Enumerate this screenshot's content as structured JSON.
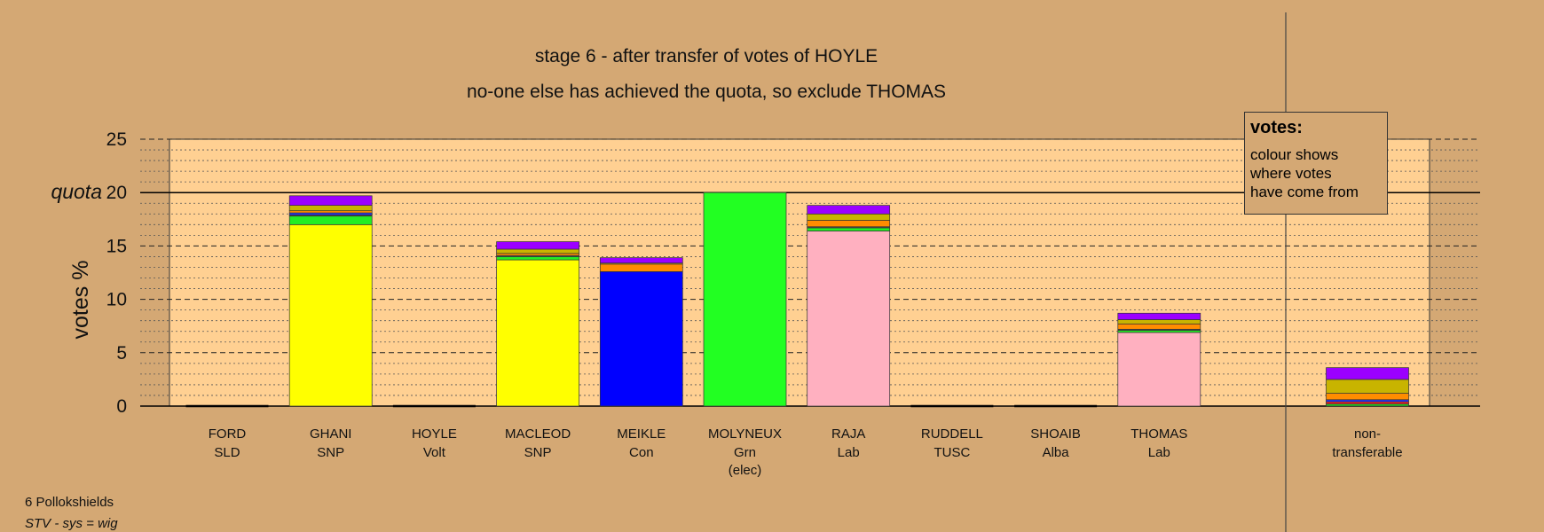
{
  "title": "stage 6 - after transfer of votes of HOYLE",
  "subtitle": "no-one else has achieved the quota, so exclude THOMAS",
  "legend": {
    "title": "votes:",
    "lines": [
      "colour shows",
      "where votes",
      "have come from"
    ]
  },
  "footer": {
    "ward": "6 Pollokshields",
    "system": "STV - sys = wig"
  },
  "chart_data": {
    "type": "bar",
    "stacked": true,
    "ylabel": "votes %",
    "ylim": [
      0,
      25
    ],
    "yticks": [
      0,
      5,
      10,
      15,
      20,
      25
    ],
    "quota": 20,
    "quota_label": "quota",
    "grid": "dashed every 5, dotted every 1",
    "legend_position": "top-right",
    "categories": [
      {
        "name": "FORD",
        "party": "SLD",
        "note": ""
      },
      {
        "name": "GHANI",
        "party": "SNP",
        "note": ""
      },
      {
        "name": "HOYLE",
        "party": "Volt",
        "note": ""
      },
      {
        "name": "MACLEOD",
        "party": "SNP",
        "note": ""
      },
      {
        "name": "MEIKLE",
        "party": "Con",
        "note": ""
      },
      {
        "name": "MOLYNEUX",
        "party": "Grn",
        "note": "(elec)"
      },
      {
        "name": "RAJA",
        "party": "Lab",
        "note": ""
      },
      {
        "name": "RUDDELL",
        "party": "TUSC",
        "note": ""
      },
      {
        "name": "SHOAIB",
        "party": "Alba",
        "note": ""
      },
      {
        "name": "THOMAS",
        "party": "Lab",
        "note": ""
      }
    ],
    "nontransferable": {
      "label_lines": [
        "non-",
        "transferable"
      ],
      "segments": [
        {
          "color": "#22cc22",
          "value": 0.2
        },
        {
          "color": "#ff2222",
          "value": 0.2
        },
        {
          "color": "#2233ff",
          "value": 0.2
        },
        {
          "color": "#ff8c00",
          "value": 0.6
        },
        {
          "color": "#c8b400",
          "value": 1.3
        },
        {
          "color": "#9b00ff",
          "value": 1.1
        }
      ]
    },
    "bars": [
      [],
      [
        {
          "color": "#ffff00",
          "value": 17.0
        },
        {
          "color": "#22ee22",
          "value": 0.8
        },
        {
          "color": "#555555",
          "value": 0.1
        },
        {
          "color": "#2233ff",
          "value": 0.2
        },
        {
          "color": "#ff8c00",
          "value": 0.2
        },
        {
          "color": "#c8b400",
          "value": 0.5
        },
        {
          "color": "#9b00ff",
          "value": 0.9
        }
      ],
      [],
      [
        {
          "color": "#ffff00",
          "value": 13.7
        },
        {
          "color": "#22ee22",
          "value": 0.3
        },
        {
          "color": "#555555",
          "value": 0.1
        },
        {
          "color": "#ff8c00",
          "value": 0.2
        },
        {
          "color": "#c8b400",
          "value": 0.4
        },
        {
          "color": "#9b00ff",
          "value": 0.7
        }
      ],
      [
        {
          "color": "#0000ff",
          "value": 12.6
        },
        {
          "color": "#ff8c00",
          "value": 0.7
        },
        {
          "color": "#c8b400",
          "value": 0.1
        },
        {
          "color": "#9b00ff",
          "value": 0.5
        }
      ],
      [
        {
          "color": "#22ff22",
          "value": 20.0
        }
      ],
      [
        {
          "color": "#ffb0c0",
          "value": 16.4
        },
        {
          "color": "#22ee22",
          "value": 0.3
        },
        {
          "color": "#555555",
          "value": 0.1
        },
        {
          "color": "#ff8c00",
          "value": 0.6
        },
        {
          "color": "#c8b400",
          "value": 0.6
        },
        {
          "color": "#9b00ff",
          "value": 0.8
        }
      ],
      [],
      [],
      [
        {
          "color": "#ffb0c0",
          "value": 6.9
        },
        {
          "color": "#22ee22",
          "value": 0.2
        },
        {
          "color": "#555555",
          "value": 0.1
        },
        {
          "color": "#ff8c00",
          "value": 0.5
        },
        {
          "color": "#c8b400",
          "value": 0.4
        },
        {
          "color": "#9b00ff",
          "value": 0.6
        }
      ]
    ]
  }
}
